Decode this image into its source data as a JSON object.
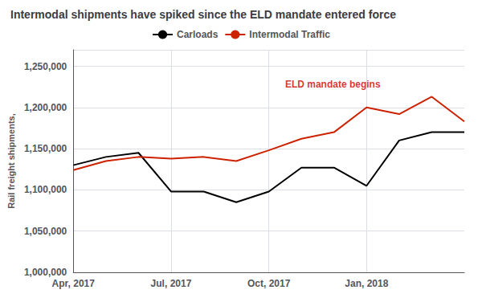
{
  "chart_data": {
    "type": "line",
    "title": "Intermodal shipments have spiked since the ELD mandate entered force",
    "ylabel": "Rail freight shipments,",
    "categories": [
      "Apr, 2017",
      null,
      null,
      "Jul, 2017",
      null,
      null,
      "Oct, 2017",
      null,
      null,
      "Jan, 2018",
      null,
      null,
      null
    ],
    "series": [
      {
        "name": "Carloads",
        "color": "#000000",
        "values": [
          1130000,
          1140000,
          1145000,
          1098000,
          1098000,
          1085000,
          1098000,
          1127000,
          1127000,
          1105000,
          1160000,
          1170000,
          1170000
        ]
      },
      {
        "name": "Intermodal Traffic",
        "color": "#cc2200",
        "values": [
          1124000,
          1135000,
          1140000,
          1138000,
          1140000,
          1135000,
          1148000,
          1162000,
          1170000,
          1200000,
          1192000,
          1213000,
          1183000
        ]
      }
    ],
    "ylim": [
      1000000,
      1270000
    ],
    "yticks": [
      {
        "value": 1000000,
        "label": "1,000,000"
      },
      {
        "value": 1050000,
        "label": "1,050,000"
      },
      {
        "value": 1100000,
        "label": "1,100,000"
      },
      {
        "value": 1150000,
        "label": "1,150,000"
      },
      {
        "value": 1200000,
        "label": "1,200,000"
      },
      {
        "value": 1250000,
        "label": "1,250,000"
      }
    ],
    "grid": true,
    "legend": "top",
    "annotations": [
      {
        "text": "ELD mandate begins",
        "x": 6.5,
        "y": 1222000,
        "color": "#cc0000"
      }
    ]
  }
}
